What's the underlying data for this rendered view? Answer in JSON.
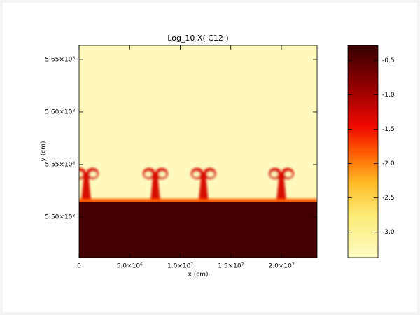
{
  "chart_data": {
    "type": "heatmap",
    "title": "Log_10  X( C12 )",
    "xlabel": "x (cm)",
    "ylabel": "y (cm)",
    "xlim": [
      0,
      23530000
    ],
    "ylim": [
      546130000,
      566330000
    ],
    "xticks": [
      {
        "value": 0,
        "label": "0"
      },
      {
        "value": 5000000,
        "label": "5.0×10⁶"
      },
      {
        "value": 10000000,
        "label": "1.0×10⁷"
      },
      {
        "value": 15000000,
        "label": "1.5×10⁷"
      },
      {
        "value": 20000000,
        "label": "2.0×10⁷"
      }
    ],
    "yticks": [
      {
        "value": 550000000,
        "label": "5.50×10⁸"
      },
      {
        "value": 555000000,
        "label": "5.55×10⁸"
      },
      {
        "value": 560000000,
        "label": "5.60×10⁸"
      },
      {
        "value": 565000000,
        "label": "5.65×10⁸"
      }
    ],
    "colormap": "hot_r",
    "clim": [
      -3.37,
      -0.28
    ],
    "cticks": [
      {
        "value": -3.0,
        "label": "-3.0"
      },
      {
        "value": -2.5,
        "label": "-2.5"
      },
      {
        "value": -2.0,
        "label": "-2.0"
      },
      {
        "value": -1.5,
        "label": "-1.5"
      },
      {
        "value": -1.0,
        "label": "-1.0"
      },
      {
        "value": -0.5,
        "label": "-0.5"
      }
    ],
    "field": {
      "background": -3.3,
      "layer_value": -0.35,
      "layer_top": 551470000,
      "plumes": [
        {
          "x": 700000,
          "cap_y": 554670000,
          "value": -1.3
        },
        {
          "x": 7540000,
          "cap_y": 554670000,
          "value": -1.3
        },
        {
          "x": 12300000,
          "cap_y": 554670000,
          "value": -1.3
        },
        {
          "x": 20000000,
          "cap_y": 554670000,
          "value": -1.3
        }
      ]
    }
  }
}
